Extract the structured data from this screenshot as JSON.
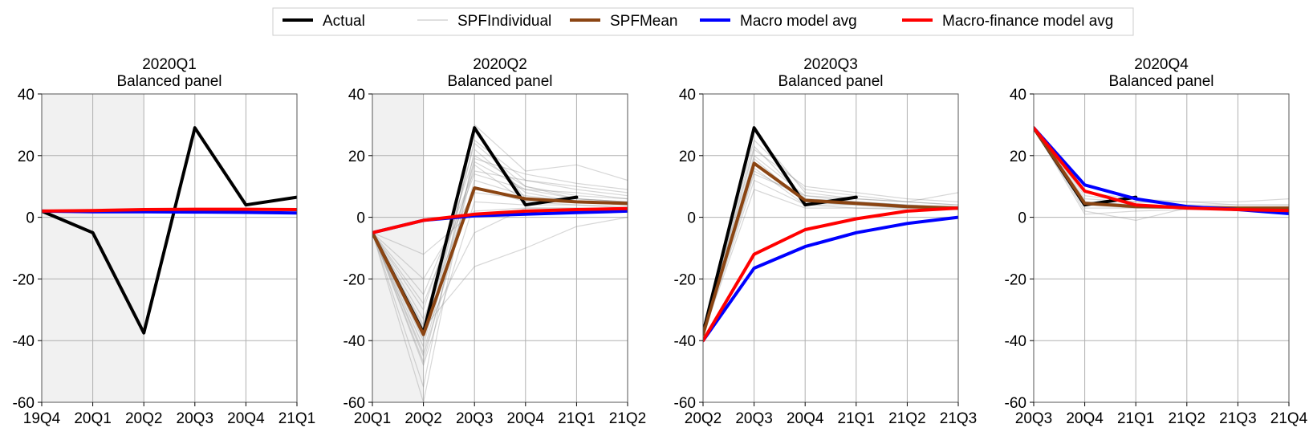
{
  "legend": [
    {
      "label": "Actual",
      "color": "#000000"
    },
    {
      "label": "SPFIndividual",
      "color": "#cccccc"
    },
    {
      "label": "SPFMean",
      "color": "#8B4513"
    },
    {
      "label": "Macro model avg",
      "color": "#0000ff"
    },
    {
      "label": "Macro-finance model avg",
      "color": "#ff0000"
    }
  ],
  "chart_data": [
    {
      "type": "line",
      "title": "2020Q1",
      "subtitle": "Balanced panel",
      "categories": [
        "19Q4",
        "20Q1",
        "20Q2",
        "20Q3",
        "20Q4",
        "21Q1"
      ],
      "ylim": [
        -60,
        40
      ],
      "yticks": [
        40,
        20,
        0,
        -20,
        -40,
        -60
      ],
      "grid": true,
      "shaded_region": [
        0,
        2
      ],
      "series": [
        {
          "name": "Actual",
          "values": [
            2,
            -5,
            -37.5,
            29,
            4,
            6.5
          ]
        },
        {
          "name": "Macro model avg",
          "values": [
            2,
            1.8,
            1.8,
            1.7,
            1.6,
            1.4
          ]
        },
        {
          "name": "Macro-finance model avg",
          "values": [
            2,
            2.2,
            2.5,
            2.6,
            2.6,
            2.5
          ]
        }
      ],
      "spf_individual": [],
      "spf_mean": null
    },
    {
      "type": "line",
      "title": "2020Q2",
      "subtitle": "Balanced panel",
      "categories": [
        "20Q1",
        "20Q2",
        "20Q3",
        "20Q4",
        "21Q1",
        "21Q2"
      ],
      "ylim": [
        -60,
        40
      ],
      "yticks": [
        40,
        20,
        0,
        -20,
        -40,
        -60
      ],
      "grid": true,
      "shaded_region": [
        0,
        1
      ],
      "series": [
        {
          "name": "Actual",
          "values": [
            -5,
            -37.5,
            29,
            4,
            6.5,
            null
          ]
        },
        {
          "name": "SPFMean",
          "values": [
            -5,
            -38,
            9.5,
            6,
            5,
            4.5
          ]
        },
        {
          "name": "Macro model avg",
          "values": [
            -5,
            -1,
            0.5,
            1,
            1.5,
            2
          ]
        },
        {
          "name": "Macro-finance model avg",
          "values": [
            -5,
            -1,
            1,
            2,
            2.5,
            2.8
          ]
        }
      ],
      "spf_individual": [
        [
          -5,
          -35,
          28,
          6,
          5,
          4.5
        ],
        [
          -5,
          -40,
          18,
          9,
          6,
          5
        ],
        [
          -5,
          -45,
          12,
          7,
          5,
          4
        ],
        [
          -5,
          -30,
          20,
          10,
          7,
          6
        ],
        [
          -5,
          -48,
          5,
          4,
          4,
          3.5
        ],
        [
          -5,
          -25,
          15,
          12,
          9,
          7
        ],
        [
          -5,
          -60,
          22,
          8,
          5,
          4
        ],
        [
          -5,
          -38,
          -5,
          3,
          3,
          2
        ],
        [
          -5,
          -42,
          25,
          12,
          10,
          8
        ],
        [
          -5,
          -33,
          10,
          5,
          5,
          5
        ],
        [
          -5,
          -20,
          8,
          6,
          6,
          5
        ],
        [
          -5,
          -12,
          2,
          3,
          3,
          3
        ],
        [
          -5,
          -55,
          30,
          15,
          17,
          12
        ],
        [
          -5,
          -36,
          -16,
          -10,
          -3,
          0
        ],
        [
          -5,
          -44,
          19,
          14,
          11,
          9
        ],
        [
          -5,
          -28,
          14,
          9,
          8,
          6
        ],
        [
          -5,
          -39,
          24,
          10,
          6,
          5
        ],
        [
          -5,
          -47,
          17,
          5,
          4,
          3
        ]
      ],
      "spf_mean": "SPFMean"
    },
    {
      "type": "line",
      "title": "2020Q3",
      "subtitle": "Balanced panel",
      "categories": [
        "20Q2",
        "20Q3",
        "20Q4",
        "21Q1",
        "21Q2",
        "21Q3"
      ],
      "ylim": [
        -60,
        40
      ],
      "yticks": [
        40,
        20,
        0,
        -20,
        -40,
        -60
      ],
      "grid": true,
      "shaded_region": null,
      "series": [
        {
          "name": "Actual",
          "values": [
            -37.5,
            29,
            4,
            6.5,
            null,
            null
          ]
        },
        {
          "name": "SPFMean",
          "values": [
            -38,
            17.5,
            5.5,
            4.5,
            3.5,
            3
          ]
        },
        {
          "name": "Macro model avg",
          "values": [
            -40,
            -16.5,
            -9.5,
            -5,
            -2,
            0
          ]
        },
        {
          "name": "Macro-finance model avg",
          "values": [
            -40,
            -12,
            -4,
            -0.5,
            2,
            3
          ]
        }
      ],
      "spf_individual": [
        [
          -38,
          20,
          7,
          5,
          4,
          3
        ],
        [
          -38,
          12,
          4,
          3,
          3,
          3
        ],
        [
          -38,
          25,
          9,
          7,
          5,
          4
        ],
        [
          -38,
          15,
          6,
          5,
          4,
          3.5
        ],
        [
          -38,
          22,
          10,
          8,
          6,
          5
        ],
        [
          -38,
          9,
          3,
          3,
          2.5,
          2.5
        ],
        [
          -38,
          18,
          5,
          4,
          3,
          3
        ],
        [
          -38,
          28,
          8,
          6,
          5,
          8
        ],
        [
          -38,
          14,
          7,
          6,
          5,
          4
        ],
        [
          -38,
          19,
          5,
          4,
          3.5,
          3
        ],
        [
          -38,
          23,
          6,
          5,
          4,
          3
        ],
        [
          -38,
          16,
          4,
          4,
          3,
          2.5
        ]
      ],
      "spf_mean": "SPFMean"
    },
    {
      "type": "line",
      "title": "2020Q4",
      "subtitle": "Balanced panel",
      "categories": [
        "20Q3",
        "20Q4",
        "21Q1",
        "21Q2",
        "21Q3",
        "21Q4"
      ],
      "ylim": [
        -60,
        40
      ],
      "yticks": [
        40,
        20,
        0,
        -20,
        -40,
        -60
      ],
      "grid": true,
      "shaded_region": null,
      "series": [
        {
          "name": "Actual",
          "values": [
            29,
            4,
            6.5,
            null,
            null,
            null
          ]
        },
        {
          "name": "SPFMean",
          "values": [
            29,
            4.5,
            3.5,
            3.2,
            3,
            3
          ]
        },
        {
          "name": "Macro model avg",
          "values": [
            29,
            10.5,
            6,
            3.5,
            2.5,
            1.2
          ]
        },
        {
          "name": "Macro-finance model avg",
          "values": [
            29,
            8.5,
            4,
            3,
            2.5,
            2.2
          ]
        }
      ],
      "spf_individual": [
        [
          29,
          5,
          4,
          3.5,
          3,
          3
        ],
        [
          29,
          2,
          -1,
          3,
          3,
          3
        ],
        [
          29,
          6,
          5,
          4,
          4,
          4
        ],
        [
          29,
          3,
          3,
          3,
          3,
          3
        ],
        [
          29,
          7,
          5,
          5,
          4,
          4
        ],
        [
          29,
          4,
          4,
          3,
          3,
          2.5
        ],
        [
          29,
          1,
          2,
          2.5,
          2.5,
          2.5
        ],
        [
          29,
          8,
          6,
          5,
          5,
          6
        ],
        [
          29,
          5,
          4,
          3,
          3,
          3
        ],
        [
          29,
          4,
          3,
          3,
          3,
          3
        ]
      ],
      "spf_mean": "SPFMean"
    }
  ]
}
